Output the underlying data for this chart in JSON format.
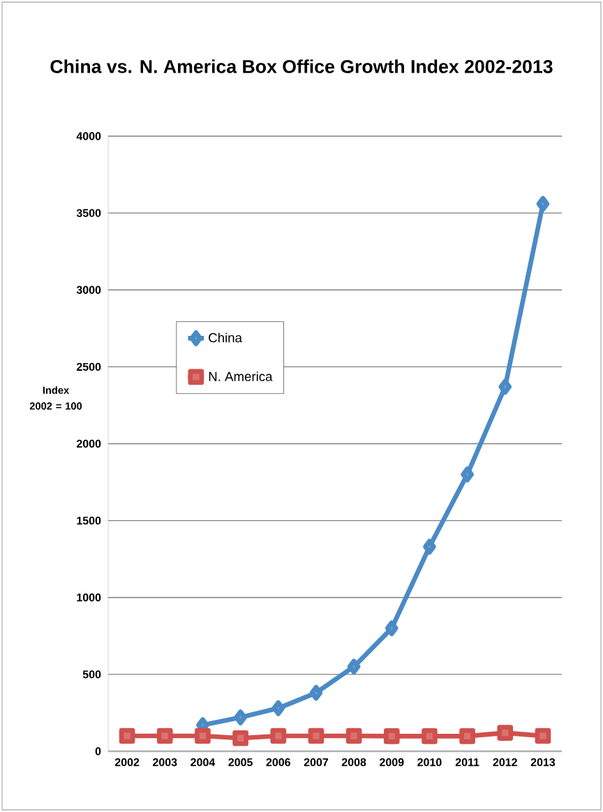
{
  "chart_data": {
    "type": "line",
    "title": "China vs. N. America Box Office Growth Index 2002-2013",
    "ylabel": "Index 2002 = 100",
    "categories": [
      "2002",
      "2003",
      "2004",
      "2005",
      "2006",
      "2007",
      "2008",
      "2009",
      "2010",
      "2011",
      "2012",
      "2013"
    ],
    "series": [
      {
        "name": "China",
        "color": "#4a8ac6",
        "marker": "diamond",
        "values": [
          null,
          null,
          170,
          220,
          280,
          380,
          550,
          800,
          1330,
          1800,
          2370,
          3560
        ]
      },
      {
        "name": "N. America",
        "color": "#d0504d",
        "marker": "square",
        "values": [
          100,
          100,
          100,
          85,
          100,
          100,
          100,
          98,
          98,
          98,
          120,
          100
        ]
      }
    ],
    "ylim": [
      0,
      4000
    ],
    "yticks": [
      0,
      500,
      1000,
      1500,
      2000,
      2500,
      3000,
      3500,
      4000
    ],
    "grid": "y",
    "legend": "left",
    "line_style": "solid"
  }
}
